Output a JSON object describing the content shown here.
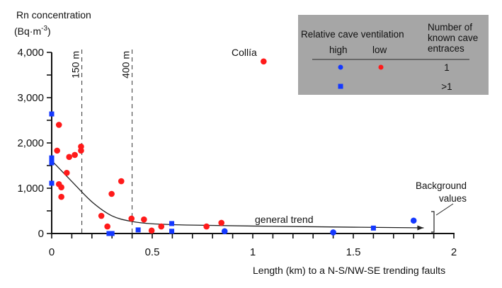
{
  "chart_data": {
    "type": "scatter",
    "title": "",
    "ylabel_line1": "Rn concentration",
    "ylabel_unit_base": "(Bq·m",
    "ylabel_unit_exp": "-3",
    "ylabel_unit_close": ")",
    "xlabel": "Length (km) to a N-S/NW-SE trending faults",
    "xlim": [
      0,
      2
    ],
    "ylim": [
      0,
      4000
    ],
    "x_ticks": [
      0,
      0.5,
      1,
      1.5,
      2
    ],
    "x_tick_labels": [
      "0",
      "0.5",
      "1",
      "1.5",
      "2"
    ],
    "x_minor_step": 0.1,
    "y_ticks": [
      0,
      1000,
      2000,
      3000,
      4000
    ],
    "y_tick_labels": [
      "0",
      "1,000",
      "2,000",
      "3,000",
      "4,000"
    ],
    "y_minor_step": 500,
    "grid": false,
    "reference_lines": [
      {
        "x": 0.15,
        "label": "150 m"
      },
      {
        "x": 0.4,
        "label": "400 m"
      }
    ],
    "series": [
      {
        "name": "high ventilation, 1 entrance",
        "marker": "circle",
        "color": "#1438ff",
        "points": [
          [
            0.86,
            50
          ],
          [
            1.4,
            25
          ],
          [
            1.8,
            285
          ]
        ]
      },
      {
        "name": "low ventilation, 1 entrance",
        "marker": "circle",
        "color": "#ff1a1a",
        "points": [
          [
            0.027,
            1830
          ],
          [
            0.036,
            2400
          ],
          [
            0.036,
            1090
          ],
          [
            0.048,
            1020
          ],
          [
            0.048,
            810
          ],
          [
            0.075,
            1340
          ],
          [
            0.087,
            1690
          ],
          [
            0.115,
            1735
          ],
          [
            0.146,
            1920
          ],
          [
            0.146,
            1830
          ],
          [
            0.247,
            390
          ],
          [
            0.277,
            155
          ],
          [
            0.298,
            875
          ],
          [
            0.346,
            1155
          ],
          [
            0.397,
            330
          ],
          [
            0.459,
            310
          ],
          [
            0.497,
            65
          ],
          [
            0.545,
            155
          ],
          [
            0.77,
            155
          ],
          [
            0.844,
            235
          ],
          [
            1.054,
            3800
          ]
        ]
      },
      {
        "name": "high ventilation, >1 entrances",
        "marker": "square",
        "color": "#1438ff",
        "points": [
          [
            0,
            2640
          ],
          [
            0,
            1670
          ],
          [
            0,
            1600
          ],
          [
            0,
            1560
          ],
          [
            0,
            1110
          ],
          [
            0.285,
            0
          ],
          [
            0.3,
            0
          ],
          [
            0.43,
            80
          ],
          [
            0.597,
            220
          ],
          [
            0.597,
            50
          ],
          [
            1.6,
            120
          ]
        ]
      }
    ],
    "trend": {
      "label": "general trend",
      "points": [
        [
          0,
          1610
        ],
        [
          0.1,
          1150
        ],
        [
          0.2,
          700
        ],
        [
          0.3,
          390
        ],
        [
          0.4,
          265
        ],
        [
          0.5,
          215
        ],
        [
          0.7,
          185
        ],
        [
          1.0,
          165
        ],
        [
          1.5,
          140
        ],
        [
          1.85,
          125
        ]
      ]
    },
    "annotations": {
      "collia": "Collía",
      "background_line1": "Background",
      "background_line2": "values"
    },
    "legend": {
      "position": "top-right",
      "header_left": "Relative cave ventilation",
      "col_high": "high",
      "col_low": "low",
      "header_right_line1": "Number of",
      "header_right_line2": "known cave",
      "header_right_line3": "entraces",
      "row1_count": "1",
      "row2_count": ">1",
      "background": "#a6a6a6"
    }
  }
}
